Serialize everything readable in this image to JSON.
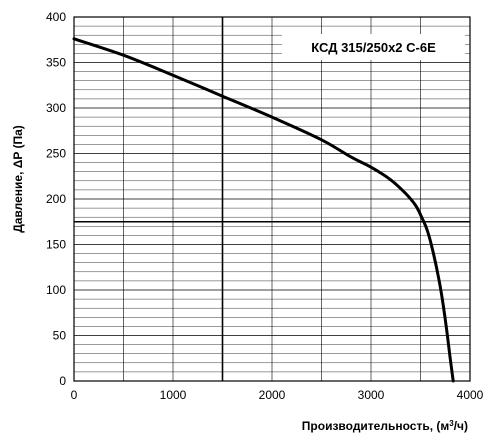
{
  "chart_data": {
    "type": "line",
    "title": "КСД 315/250х2 С-6Е",
    "xlabel": "Производительность, (м³/ч)",
    "ylabel": "Давление, ΔP (Па)",
    "xlim": [
      0,
      4000
    ],
    "ylim": [
      0,
      400
    ],
    "x_ticks": [
      0,
      1000,
      2000,
      3000,
      4000
    ],
    "y_ticks": [
      0,
      50,
      100,
      150,
      200,
      250,
      300,
      350,
      400
    ],
    "grid": true,
    "series": [
      {
        "x": [
          0,
          500,
          1000,
          1500,
          2000,
          2500,
          2800,
          3000,
          3200,
          3350,
          3450,
          3520,
          3570,
          3620,
          3680,
          3720,
          3760,
          3800,
          3830
        ],
        "y": [
          376,
          358,
          336,
          313,
          290,
          265,
          246,
          235,
          221,
          206,
          193,
          178,
          165,
          145,
          115,
          90,
          60,
          25,
          0
        ]
      }
    ],
    "reference_lines": {
      "x": 1500,
      "y": 175
    }
  }
}
